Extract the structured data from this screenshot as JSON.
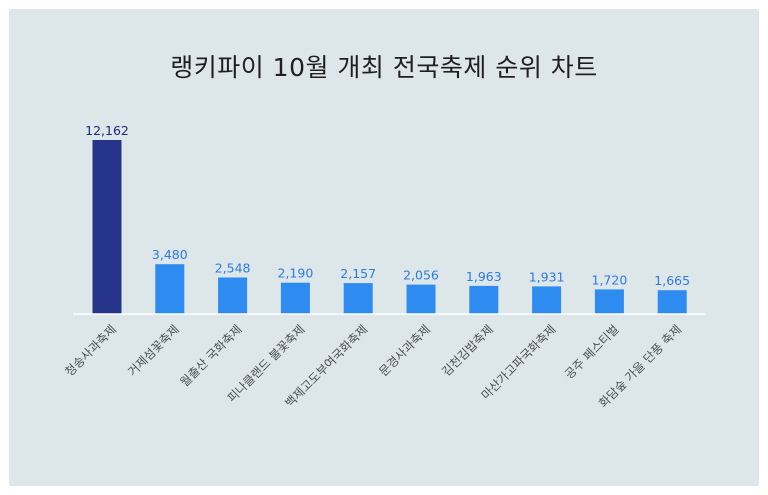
{
  "chart_data": {
    "type": "bar",
    "title": "랭키파이 10월 개최 전국축제 순위 차트",
    "categories": [
      "청송사과축제",
      "거제섬꽃축제",
      "월출산 국화축제",
      "피나클랜드 불꽃축제",
      "백제고도부여국화축제",
      "문경사과축제",
      "김천김밥축제",
      "마산가고파국화축제",
      "공주 페스티벌",
      "화담숲 가을 단풍 축제"
    ],
    "values": [
      12162,
      3480,
      2548,
      2190,
      2157,
      2056,
      1963,
      1931,
      1720,
      1665
    ],
    "value_labels": [
      "12,162",
      "3,480",
      "2,548",
      "2,190",
      "2,157",
      "2,056",
      "1,963",
      "1,931",
      "1,720",
      "1,665"
    ],
    "ylim": [
      0,
      12162
    ],
    "colors": {
      "top_bar": "#26348a",
      "bar": "#2e8cf0",
      "top_label": "#1e2a78",
      "label": "#2e7be0"
    },
    "grid": false,
    "legend": "none"
  }
}
